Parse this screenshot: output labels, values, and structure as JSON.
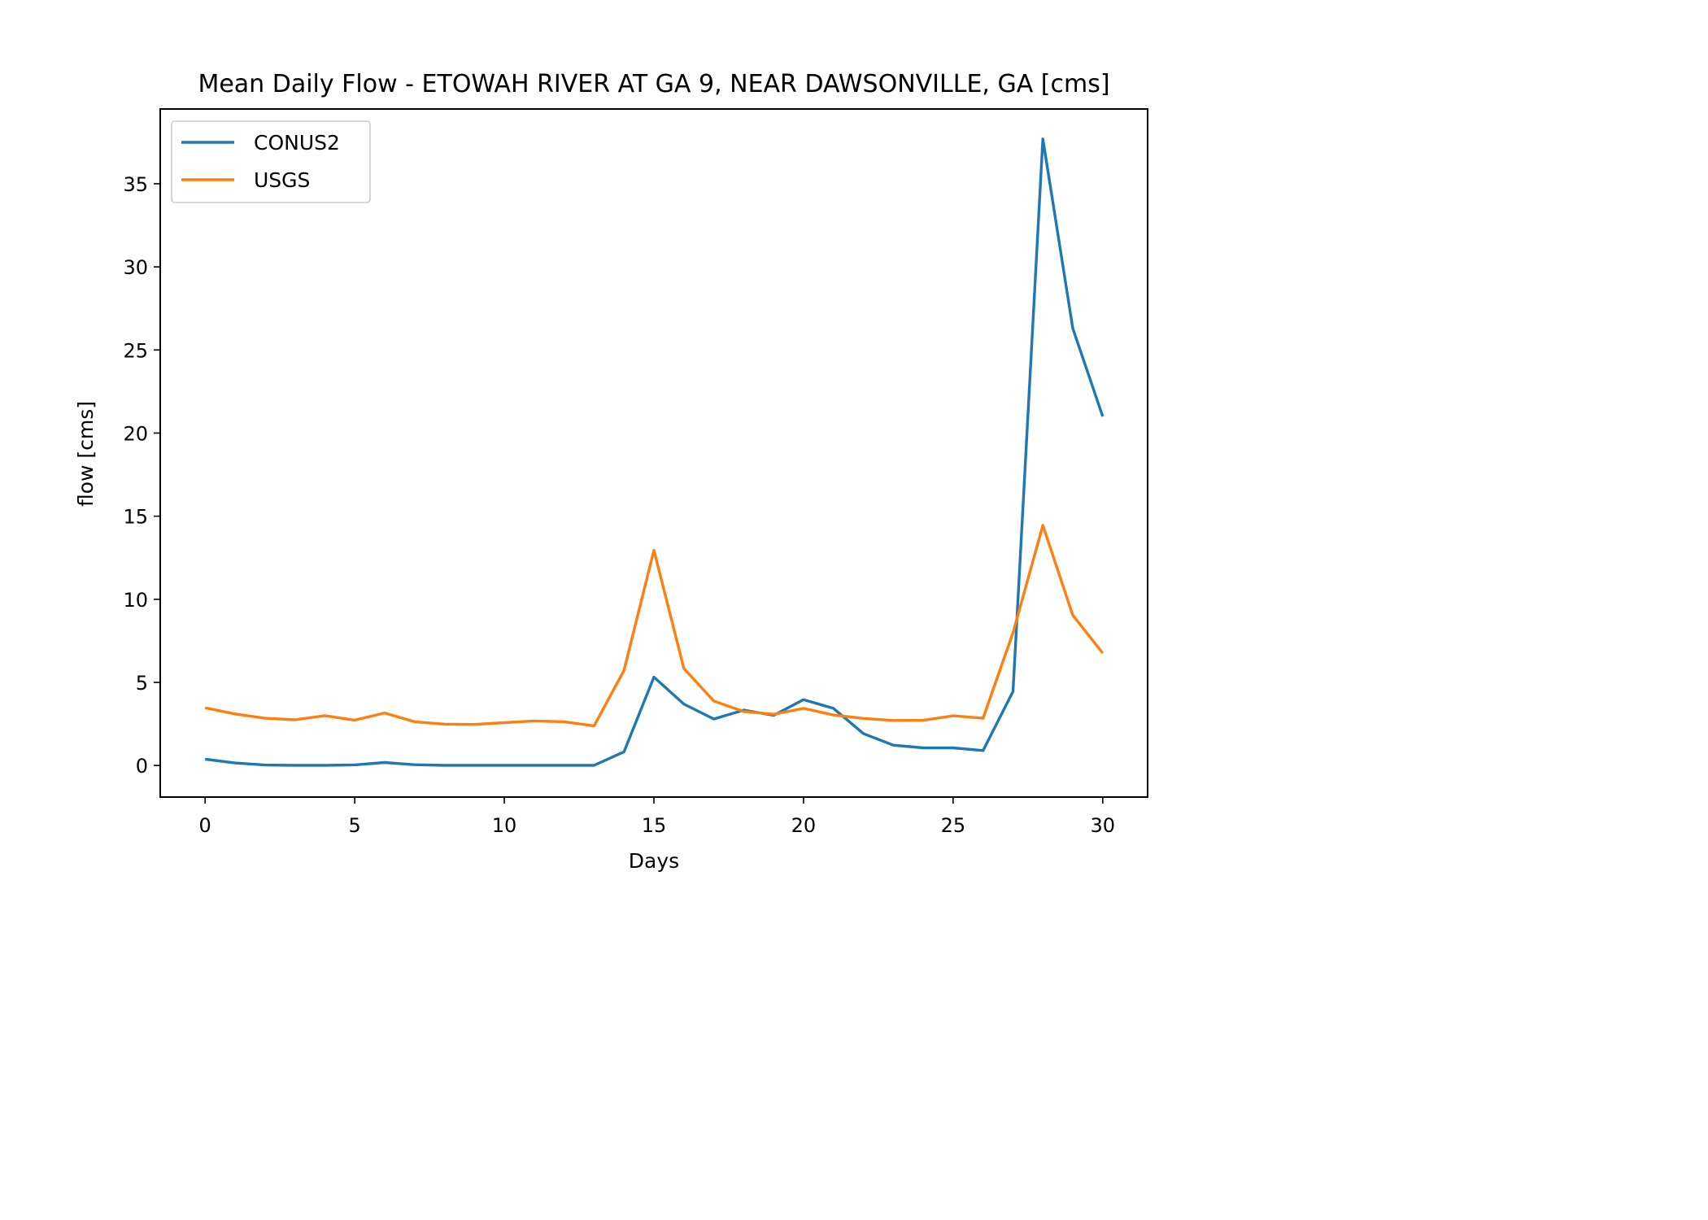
{
  "chart_data": {
    "type": "line",
    "title": "Mean Daily Flow - ETOWAH RIVER AT GA 9, NEAR DAWSONVILLE, GA [cms]",
    "xlabel": "Days",
    "ylabel": "flow [cms]",
    "xlim": [
      -1.5,
      31.5
    ],
    "ylim": [
      -1.9,
      39.5
    ],
    "xticks": [
      0,
      5,
      10,
      15,
      20,
      25,
      30
    ],
    "yticks": [
      0,
      5,
      10,
      15,
      20,
      25,
      30,
      35
    ],
    "grid": false,
    "legend_position": "upper-left",
    "x": [
      0,
      1,
      2,
      3,
      4,
      5,
      6,
      7,
      8,
      9,
      10,
      11,
      12,
      13,
      14,
      15,
      16,
      17,
      18,
      19,
      20,
      21,
      22,
      23,
      24,
      25,
      26,
      27,
      28,
      29,
      30
    ],
    "series": [
      {
        "name": "CONUS2",
        "color": "#1f77b4",
        "values": [
          0.38,
          0.15,
          0.03,
          0.01,
          0.01,
          0.04,
          0.18,
          0.05,
          0.01,
          0.01,
          0.01,
          0.01,
          0.01,
          0.01,
          0.82,
          5.32,
          3.7,
          2.8,
          3.33,
          3.02,
          3.96,
          3.44,
          1.92,
          1.22,
          1.06,
          1.06,
          0.9,
          4.45,
          37.7,
          26.3,
          21.0
        ]
      },
      {
        "name": "USGS",
        "color": "#ff7f0e",
        "values": [
          3.47,
          3.1,
          2.84,
          2.75,
          3.0,
          2.73,
          3.16,
          2.63,
          2.49,
          2.47,
          2.58,
          2.68,
          2.63,
          2.38,
          5.72,
          12.95,
          5.84,
          3.88,
          3.25,
          3.08,
          3.44,
          3.04,
          2.83,
          2.71,
          2.72,
          2.99,
          2.84,
          7.99,
          14.45,
          9.04,
          6.76
        ]
      }
    ]
  }
}
